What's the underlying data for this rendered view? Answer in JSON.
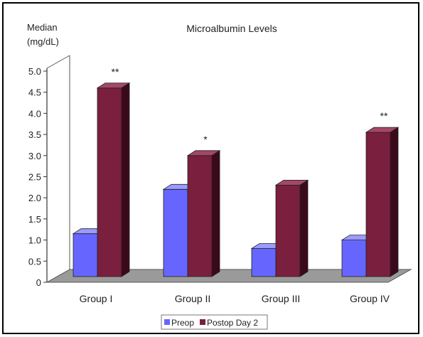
{
  "chart_data": {
    "type": "bar",
    "title": "Microalbumin Levels",
    "ylabel": [
      "Median",
      "(mg/dL)"
    ],
    "xlabel": "",
    "categories": [
      "Group I",
      "Group II",
      "Group III",
      "Group IV"
    ],
    "ylim": [
      0,
      5.0
    ],
    "yticks": [
      "0",
      "0.5",
      "1.0",
      "1.5",
      "2.0",
      "2.5",
      "3.0",
      "3.5",
      "4.0",
      "4.5",
      "5.0"
    ],
    "series": [
      {
        "name": "Preop",
        "values": [
          1.15,
          2.2,
          0.8,
          1.0
        ]
      },
      {
        "name": "Postop Day 2",
        "values": [
          4.6,
          3.0,
          2.3,
          3.55
        ]
      }
    ],
    "annotations": [
      "**",
      "*",
      "",
      "**"
    ],
    "legend_position": "bottom-center",
    "grid": false
  },
  "colors": {
    "preop_front": "#6666ff",
    "preop_top": "#9a9aff",
    "preop_side": "#2e2e8c",
    "postop_front": "#7a1f3d",
    "postop_top": "#a34866",
    "postop_side": "#3a0a1c",
    "floor": "#9a9a9a"
  }
}
